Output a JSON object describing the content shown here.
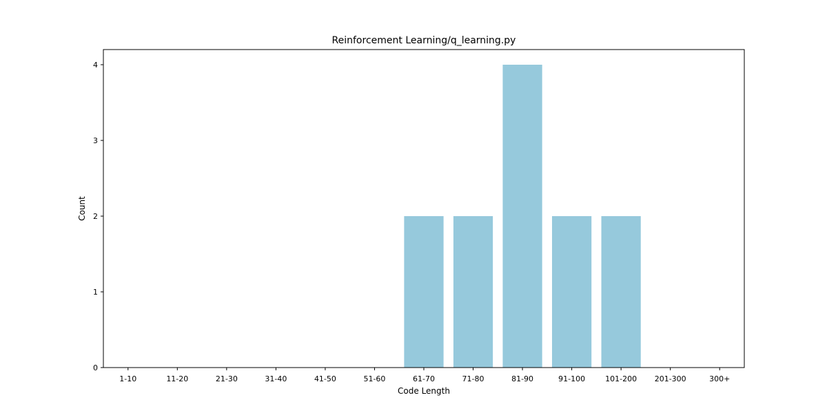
{
  "chart_data": {
    "type": "bar",
    "title": "Reinforcement Learning/q_learning.py",
    "xlabel": "Code Length",
    "ylabel": "Count",
    "categories": [
      "1-10",
      "11-20",
      "21-30",
      "31-40",
      "41-50",
      "51-60",
      "61-70",
      "71-80",
      "81-90",
      "91-100",
      "101-200",
      "201-300",
      "300+"
    ],
    "values": [
      0,
      0,
      0,
      0,
      0,
      0,
      2,
      2,
      4,
      2,
      2,
      0,
      0
    ],
    "ylim": [
      0,
      4.2
    ],
    "yticks": [
      0,
      1,
      2,
      3,
      4
    ],
    "bar_color": "#96c9dc",
    "grid": false,
    "legend": "none"
  }
}
